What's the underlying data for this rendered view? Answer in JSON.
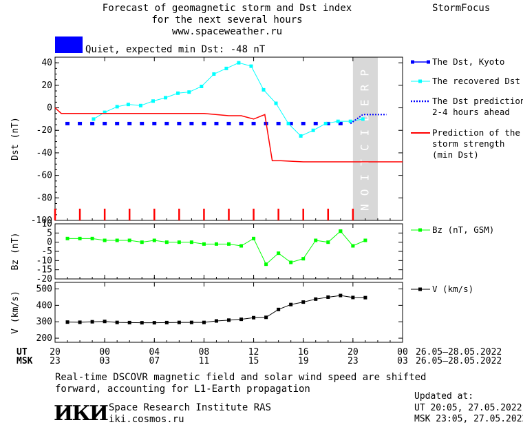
{
  "header": {
    "title_line1": "Forecast of geomagnetic storm and Dst index",
    "title_line2": "for the next several hours",
    "title_line3": "www.spaceweather.ru",
    "brand": "StormFocus",
    "status_text": "Quiet, expected min Dst: -48 nT",
    "status_color": "#0000ff"
  },
  "footer": {
    "note_line1": "Real-time DSCOVR magnetic field and solar wind speed are shifted",
    "note_line2": "forward, accounting for L1-Earth propagation",
    "institute": "Space Research Institute RAS",
    "site": "iki.cosmos.ru",
    "logo_text": "ИКИ",
    "updated_label": "Updated at:",
    "updated_ut": "UT   20:05, 27.05.2022",
    "updated_msk": "MSK 23:05, 27.05.2022"
  },
  "chart_data": [
    {
      "type": "line",
      "ylabel": "Dst (nT)",
      "ylim": [
        -100,
        45
      ],
      "yticks": [
        40,
        20,
        0,
        -20,
        -40,
        -60,
        -80,
        -100
      ],
      "prediction_band": {
        "label": "PREDICTION",
        "x_range": [
          20.0,
          22.0
        ],
        "color": "#d8d8d8"
      },
      "series": [
        {
          "name": "The Dst, Kyoto",
          "color": "#0000ff",
          "style": "points",
          "x": [
            -3.0,
            -2.0,
            -1.0,
            0.0,
            1.0,
            2.0,
            3.0,
            4.0,
            5.0,
            6.0,
            7.0,
            8.0,
            9.0,
            10.0,
            11.0,
            12.0,
            13.0,
            14.0,
            15.0,
            16.0,
            17.0,
            18.0,
            19.0
          ],
          "y": [
            -14,
            -14,
            -14,
            -14,
            -14,
            -14,
            -14,
            -14,
            -14,
            -14,
            -14,
            -14,
            -14,
            -14,
            -14,
            -14,
            -14,
            -14,
            -14,
            -14,
            -14,
            -14,
            -14
          ]
        },
        {
          "name": "The recovered Dst",
          "color": "#00ffff",
          "style": "line-markers",
          "x": [
            -0.9,
            0.0,
            1.0,
            1.9,
            2.9,
            3.9,
            4.9,
            5.9,
            6.8,
            7.8,
            8.8,
            9.8,
            10.8,
            11.8,
            12.8,
            13.8,
            14.8,
            15.8,
            16.8,
            17.8,
            18.8,
            19.8,
            20.8
          ],
          "y": [
            -10,
            -4,
            1,
            3,
            2,
            6,
            9,
            13,
            14,
            19,
            30,
            35,
            40,
            37,
            16,
            4,
            -14,
            -25,
            -20,
            -14,
            -12,
            -12,
            -10
          ]
        },
        {
          "name": "The Dst prediction 2-4 hours ahead",
          "color": "#0000ff",
          "style": "dotted",
          "x": [
            19.8,
            20.3,
            20.8,
            21.3,
            21.8,
            22.3,
            22.7
          ],
          "y": [
            -14,
            -10,
            -6,
            -6,
            -6,
            -6,
            -6
          ]
        },
        {
          "name": "Prediction of the storm strength (min Dst)",
          "color": "#ff0000",
          "style": "line",
          "x": [
            -4.0,
            -3.5,
            0.0,
            2.0,
            4.0,
            6.0,
            8.0,
            10.0,
            11.0,
            12.0,
            12.9,
            13.5,
            14.2,
            16.0,
            18.0,
            20.0,
            22.0,
            24.0
          ],
          "y": [
            0,
            -5,
            -5,
            -5,
            -5,
            -5,
            -5,
            -7,
            -7,
            -10,
            -6,
            -47,
            -47,
            -48,
            -48,
            -48,
            -48,
            -48
          ]
        }
      ]
    },
    {
      "type": "line",
      "ylabel": "Bz (nT)",
      "ylim": [
        -20,
        10
      ],
      "yticks": [
        10,
        5,
        0,
        -5,
        -10,
        -15,
        -20
      ],
      "series": [
        {
          "name": "Bz (nT, GSM)",
          "color": "#00ff00",
          "x": [
            -3.0,
            -2.0,
            -1.0,
            0.0,
            1.0,
            2.0,
            3.0,
            4.0,
            5.0,
            6.0,
            7.0,
            8.0,
            9.0,
            10.0,
            11.0,
            12.0,
            13.0,
            14.0,
            15.0,
            16.0,
            17.0,
            18.0,
            19.0
          ],
          "y": [
            2,
            2,
            2,
            1,
            1,
            1,
            0,
            1,
            0,
            0,
            0,
            -1,
            -1,
            -1,
            -2,
            2,
            -12,
            -6,
            -11,
            -9,
            1,
            0,
            6
          ]
        },
        {
          "name": "",
          "color": "#00ff00",
          "x": [
            19.0,
            20.0,
            21.0
          ],
          "y": [
            6,
            -2,
            1
          ]
        }
      ]
    },
    {
      "type": "line",
      "ylabel": "V (km/s)",
      "ylim": [
        175,
        540
      ],
      "yticks": [
        500,
        400,
        300,
        200
      ],
      "series": [
        {
          "name": "V (km/s)",
          "color": "#000000",
          "x": [
            -3.0,
            -2.0,
            -1.0,
            0.0,
            1.0,
            2.0,
            3.0,
            4.0,
            5.0,
            6.0,
            7.0,
            8.0,
            9.0,
            10.0,
            11.0,
            12.0,
            13.0,
            14.0,
            15.0,
            16.0,
            17.0,
            18.0,
            19.0,
            20.0,
            21.0
          ],
          "y": [
            298,
            297,
            300,
            302,
            296,
            295,
            294,
            294,
            295,
            296,
            296,
            296,
            305,
            310,
            315,
            325,
            327,
            375,
            405,
            420,
            438,
            450,
            460,
            448,
            447
          ]
        }
      ]
    }
  ],
  "x_axis": {
    "ut_label": "UT",
    "msk_label": "MSK",
    "ut_ticks": [
      "20",
      "00",
      "04",
      "08",
      "12",
      "16",
      "20",
      "00"
    ],
    "msk_ticks": [
      "23",
      "03",
      "07",
      "11",
      "15",
      "19",
      "23",
      "03"
    ],
    "tick_hours": [
      -4,
      0,
      4,
      8,
      12,
      16,
      20,
      24
    ],
    "ut_range": "26.05–28.05.2022",
    "msk_range": "26.05–28.05.2022"
  }
}
